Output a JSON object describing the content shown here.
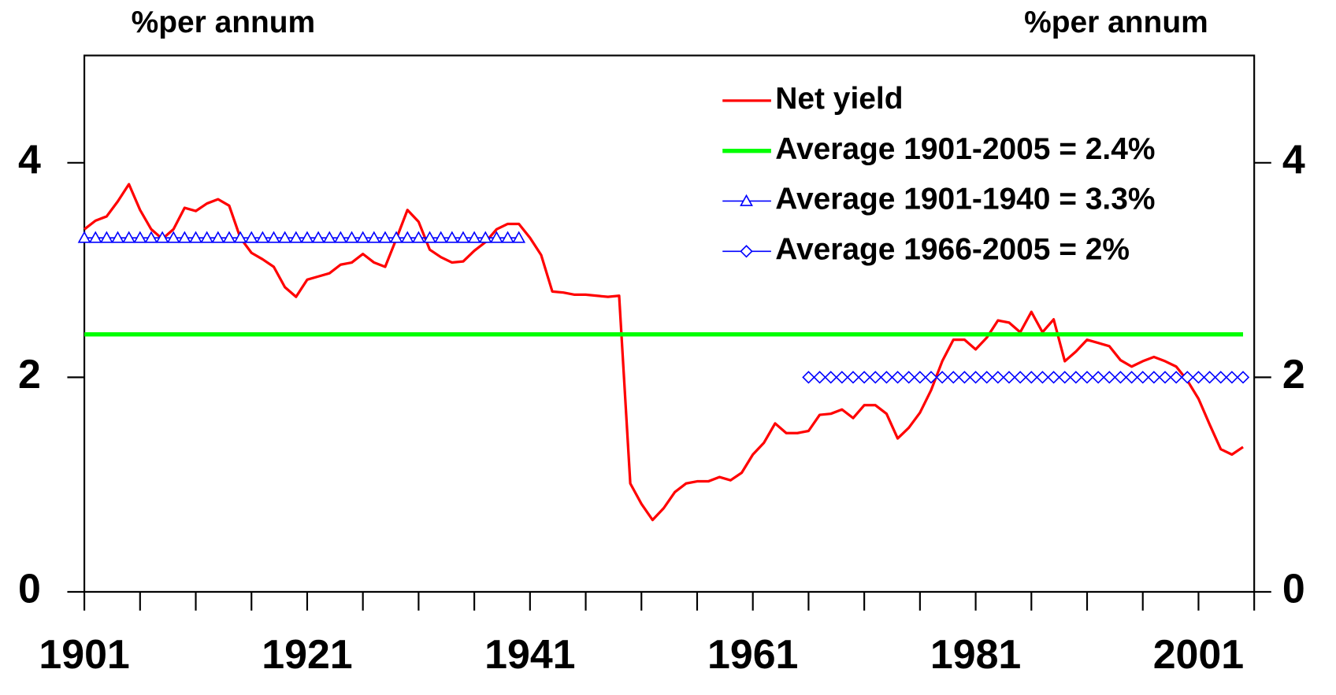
{
  "chart_data": {
    "type": "line",
    "ylabel": "%per annum",
    "y2label": "%per annum",
    "x": [
      1901,
      1902,
      1903,
      1904,
      1905,
      1906,
      1907,
      1908,
      1909,
      1910,
      1911,
      1912,
      1913,
      1914,
      1915,
      1916,
      1917,
      1918,
      1919,
      1920,
      1921,
      1922,
      1923,
      1924,
      1925,
      1926,
      1927,
      1928,
      1929,
      1930,
      1931,
      1932,
      1933,
      1934,
      1935,
      1936,
      1937,
      1938,
      1939,
      1940,
      1941,
      1942,
      1943,
      1944,
      1945,
      1946,
      1947,
      1948,
      1949,
      1950,
      1951,
      1952,
      1953,
      1954,
      1955,
      1956,
      1957,
      1958,
      1959,
      1960,
      1961,
      1962,
      1963,
      1964,
      1965,
      1966,
      1967,
      1968,
      1969,
      1970,
      1971,
      1972,
      1973,
      1974,
      1975,
      1976,
      1977,
      1978,
      1979,
      1980,
      1981,
      1982,
      1983,
      1984,
      1985,
      1986,
      1987,
      1988,
      1989,
      1990,
      1991,
      1992,
      1993,
      1994,
      1995,
      1996,
      1997,
      1998,
      1999,
      2000,
      2001,
      2002,
      2003,
      2004,
      2005
    ],
    "series": [
      {
        "name": "Net yield",
        "color": "#ff0000",
        "marker": "none",
        "width": 3,
        "values": [
          3.38,
          3.46,
          3.5,
          3.64,
          3.8,
          3.56,
          3.38,
          3.29,
          3.38,
          3.58,
          3.55,
          3.62,
          3.66,
          3.6,
          3.3,
          3.16,
          3.1,
          3.03,
          2.84,
          2.75,
          2.91,
          2.94,
          2.97,
          3.05,
          3.07,
          3.15,
          3.07,
          3.03,
          3.29,
          3.56,
          3.45,
          3.19,
          3.12,
          3.07,
          3.08,
          3.18,
          3.26,
          3.38,
          3.43,
          3.43,
          3.3,
          3.14,
          2.8,
          2.79,
          2.77,
          2.77,
          2.76,
          2.75,
          2.76,
          1.01,
          0.82,
          0.67,
          0.78,
          0.93,
          1.01,
          1.03,
          1.03,
          1.07,
          1.04,
          1.11,
          1.28,
          1.39,
          1.57,
          1.48,
          1.48,
          1.5,
          1.65,
          1.66,
          1.7,
          1.62,
          1.74,
          1.74,
          1.66,
          1.43,
          1.53,
          1.67,
          1.88,
          2.15,
          2.35,
          2.35,
          2.26,
          2.37,
          2.53,
          2.51,
          2.42,
          2.61,
          2.42,
          2.54,
          2.15,
          2.24,
          2.35,
          2.32,
          2.29,
          2.16,
          2.1,
          2.15,
          2.19,
          2.15,
          2.1,
          1.97,
          1.8,
          1.56,
          1.33,
          1.28,
          1.35
        ]
      },
      {
        "name": "Average 1901-2005 = 2.4%",
        "color": "#00ff00",
        "marker": "none",
        "width": 5,
        "values": [
          2.4,
          2.4,
          2.4,
          2.4,
          2.4,
          2.4,
          2.4,
          2.4,
          2.4,
          2.4,
          2.4,
          2.4,
          2.4,
          2.4,
          2.4,
          2.4,
          2.4,
          2.4,
          2.4,
          2.4,
          2.4,
          2.4,
          2.4,
          2.4,
          2.4,
          2.4,
          2.4,
          2.4,
          2.4,
          2.4,
          2.4,
          2.4,
          2.4,
          2.4,
          2.4,
          2.4,
          2.4,
          2.4,
          2.4,
          2.4,
          2.4,
          2.4,
          2.4,
          2.4,
          2.4,
          2.4,
          2.4,
          2.4,
          2.4,
          2.4,
          2.4,
          2.4,
          2.4,
          2.4,
          2.4,
          2.4,
          2.4,
          2.4,
          2.4,
          2.4,
          2.4,
          2.4,
          2.4,
          2.4,
          2.4,
          2.4,
          2.4,
          2.4,
          2.4,
          2.4,
          2.4,
          2.4,
          2.4,
          2.4,
          2.4,
          2.4,
          2.4,
          2.4,
          2.4,
          2.4,
          2.4,
          2.4,
          2.4,
          2.4,
          2.4,
          2.4,
          2.4,
          2.4,
          2.4,
          2.4,
          2.4,
          2.4,
          2.4,
          2.4,
          2.4,
          2.4,
          2.4,
          2.4,
          2.4,
          2.4,
          2.4,
          2.4,
          2.4,
          2.4,
          2.4
        ]
      },
      {
        "name": "Average 1901-1940 = 3.3%",
        "color": "#0000ff",
        "marker": "triangle",
        "width": 1.5,
        "values": [
          3.3,
          3.3,
          3.3,
          3.3,
          3.3,
          3.3,
          3.3,
          3.3,
          3.3,
          3.3,
          3.3,
          3.3,
          3.3,
          3.3,
          3.3,
          3.3,
          3.3,
          3.3,
          3.3,
          3.3,
          3.3,
          3.3,
          3.3,
          3.3,
          3.3,
          3.3,
          3.3,
          3.3,
          3.3,
          3.3,
          3.3,
          3.3,
          3.3,
          3.3,
          3.3,
          3.3,
          3.3,
          3.3,
          3.3,
          3.3,
          null,
          null,
          null,
          null,
          null,
          null,
          null,
          null,
          null,
          null,
          null,
          null,
          null,
          null,
          null,
          null,
          null,
          null,
          null,
          null,
          null,
          null,
          null,
          null,
          null,
          null,
          null,
          null,
          null,
          null,
          null,
          null,
          null,
          null,
          null,
          null,
          null,
          null,
          null,
          null,
          null,
          null,
          null,
          null,
          null,
          null,
          null,
          null,
          null,
          null,
          null,
          null,
          null,
          null,
          null,
          null,
          null,
          null,
          null,
          null,
          null,
          null,
          null,
          null,
          null
        ]
      },
      {
        "name": "Average 1966-2005 = 2%",
        "color": "#0000ff",
        "marker": "diamond",
        "width": 1.5,
        "values": [
          null,
          null,
          null,
          null,
          null,
          null,
          null,
          null,
          null,
          null,
          null,
          null,
          null,
          null,
          null,
          null,
          null,
          null,
          null,
          null,
          null,
          null,
          null,
          null,
          null,
          null,
          null,
          null,
          null,
          null,
          null,
          null,
          null,
          null,
          null,
          null,
          null,
          null,
          null,
          null,
          null,
          null,
          null,
          null,
          null,
          null,
          null,
          null,
          null,
          null,
          null,
          null,
          null,
          null,
          null,
          null,
          null,
          null,
          null,
          null,
          null,
          null,
          null,
          null,
          null,
          2,
          2,
          2,
          2,
          2,
          2,
          2,
          2,
          2,
          2,
          2,
          2,
          2,
          2,
          2,
          2,
          2,
          2,
          2,
          2,
          2,
          2,
          2,
          2,
          2,
          2,
          2,
          2,
          2,
          2,
          2,
          2,
          2,
          2,
          2,
          2,
          2,
          2,
          2,
          2
        ]
      }
    ],
    "xlim": [
      1901,
      2006
    ],
    "xticks": [
      1901,
      1921,
      1941,
      1961,
      1981,
      2001
    ],
    "xminorticks": [
      1906,
      1911,
      1916,
      1926,
      1931,
      1936,
      1946,
      1951,
      1956,
      1966,
      1971,
      1976,
      1986,
      1991,
      1996,
      2006
    ],
    "ylim": [
      0,
      5
    ],
    "yticks": [
      0,
      2,
      4
    ],
    "y2lim": [
      0,
      5
    ],
    "y2ticks": [
      0,
      2,
      4
    ],
    "legend": "upper right",
    "grid": false
  }
}
